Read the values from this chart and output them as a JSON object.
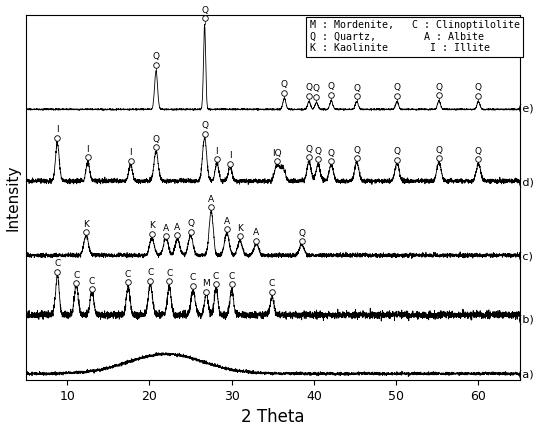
{
  "xlabel": "2 Theta",
  "ylabel": "Intensity",
  "xlim": [
    5,
    65
  ],
  "base_offsets": [
    0.0,
    0.15,
    0.32,
    0.52,
    0.72
  ],
  "background_color": "white",
  "legend_text_line1": "M : Mordenite,   C : Clinoptilolite",
  "legend_text_line2": "Q : Quartz,        A : Albite",
  "legend_text_line3": "K : Kaolinite       I : Illite",
  "annotations": {
    "b": [
      {
        "x": 8.8,
        "label": "C"
      },
      {
        "x": 11.1,
        "label": "C"
      },
      {
        "x": 13.0,
        "label": "C"
      },
      {
        "x": 17.4,
        "label": "C"
      },
      {
        "x": 20.1,
        "label": "C"
      },
      {
        "x": 22.4,
        "label": "C"
      },
      {
        "x": 25.3,
        "label": "C"
      },
      {
        "x": 26.9,
        "label": "M"
      },
      {
        "x": 28.1,
        "label": "C"
      },
      {
        "x": 30.0,
        "label": "C"
      },
      {
        "x": 34.9,
        "label": "C"
      }
    ],
    "c": [
      {
        "x": 12.3,
        "label": "K"
      },
      {
        "x": 20.3,
        "label": "K"
      },
      {
        "x": 22.0,
        "label": "A"
      },
      {
        "x": 23.4,
        "label": "A"
      },
      {
        "x": 25.0,
        "label": "Q"
      },
      {
        "x": 27.5,
        "label": "A"
      },
      {
        "x": 29.4,
        "label": "A"
      },
      {
        "x": 31.0,
        "label": "K"
      },
      {
        "x": 33.0,
        "label": "A"
      },
      {
        "x": 38.5,
        "label": "Q"
      }
    ],
    "d": [
      {
        "x": 8.8,
        "label": "I"
      },
      {
        "x": 12.5,
        "label": "I"
      },
      {
        "x": 17.7,
        "label": "I"
      },
      {
        "x": 20.8,
        "label": "Q"
      },
      {
        "x": 26.7,
        "label": "Q"
      },
      {
        "x": 28.2,
        "label": "I"
      },
      {
        "x": 29.8,
        "label": "I"
      },
      {
        "x": 35.5,
        "label": "IQ"
      },
      {
        "x": 39.4,
        "label": "Q"
      },
      {
        "x": 40.5,
        "label": "Q"
      },
      {
        "x": 42.1,
        "label": "Q"
      },
      {
        "x": 45.2,
        "label": "Q"
      },
      {
        "x": 50.1,
        "label": "Q"
      },
      {
        "x": 55.2,
        "label": "Q"
      },
      {
        "x": 60.0,
        "label": "Q"
      }
    ],
    "e": [
      {
        "x": 20.8,
        "label": "Q"
      },
      {
        "x": 26.7,
        "label": "Q"
      },
      {
        "x": 36.4,
        "label": "Q"
      },
      {
        "x": 39.4,
        "label": "Q"
      },
      {
        "x": 40.3,
        "label": "Q"
      },
      {
        "x": 42.1,
        "label": "Q"
      },
      {
        "x": 45.2,
        "label": "Q"
      },
      {
        "x": 50.1,
        "label": "Q"
      },
      {
        "x": 55.2,
        "label": "Q"
      },
      {
        "x": 60.0,
        "label": "Q"
      }
    ]
  }
}
